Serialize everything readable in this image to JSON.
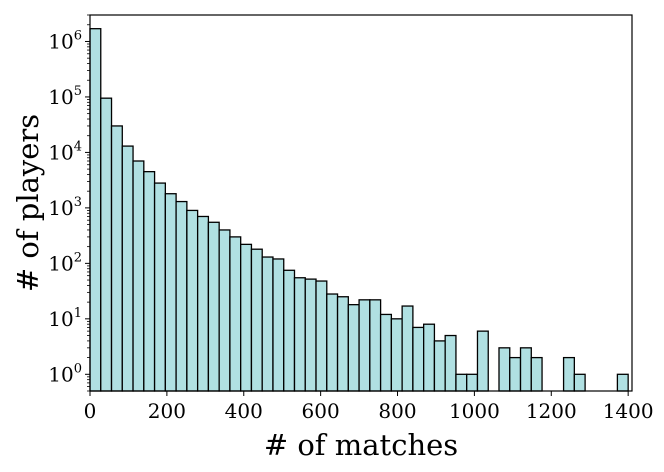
{
  "chart_data": {
    "type": "bar",
    "subtype": "histogram",
    "title": "",
    "xlabel": "# of matches",
    "ylabel": "# of players",
    "yscale": "log",
    "xlim": [
      0,
      1410
    ],
    "ylim": [
      0.5,
      3000000
    ],
    "bin_width": 28,
    "bar_color": "#b0e0e2",
    "edge_color": "#000000",
    "x_ticks": [
      0,
      200,
      400,
      600,
      800,
      1000,
      1200,
      1400
    ],
    "x_tick_labels": [
      "0",
      "200",
      "400",
      "600",
      "800",
      "1000",
      "1200",
      "1400"
    ],
    "y_ticks": [
      1,
      10,
      100,
      1000,
      10000,
      100000,
      1000000
    ],
    "y_tick_labels": [
      {
        "base": "10",
        "exp": "0"
      },
      {
        "base": "10",
        "exp": "1"
      },
      {
        "base": "10",
        "exp": "2"
      },
      {
        "base": "10",
        "exp": "3"
      },
      {
        "base": "10",
        "exp": "4"
      },
      {
        "base": "10",
        "exp": "5"
      },
      {
        "base": "10",
        "exp": "6"
      }
    ],
    "bin_starts": [
      0,
      28,
      56,
      84,
      112,
      140,
      168,
      196,
      224,
      252,
      280,
      308,
      336,
      364,
      392,
      420,
      448,
      476,
      504,
      532,
      560,
      588,
      616,
      644,
      672,
      700,
      728,
      756,
      784,
      812,
      840,
      868,
      896,
      924,
      952,
      980,
      1008,
      1036,
      1064,
      1092,
      1120,
      1148,
      1176,
      1204,
      1232,
      1260,
      1288,
      1316,
      1344,
      1372
    ],
    "values": [
      1700000,
      95000,
      30000,
      13000,
      7000,
      4500,
      2800,
      1800,
      1300,
      900,
      700,
      550,
      400,
      300,
      220,
      180,
      130,
      120,
      75,
      55,
      52,
      48,
      28,
      25,
      18,
      22,
      22,
      12,
      10,
      17,
      7,
      8,
      4,
      5,
      1,
      1,
      6,
      0,
      3,
      2,
      3,
      2,
      0,
      0,
      2,
      1,
      0,
      0,
      0,
      1
    ]
  }
}
